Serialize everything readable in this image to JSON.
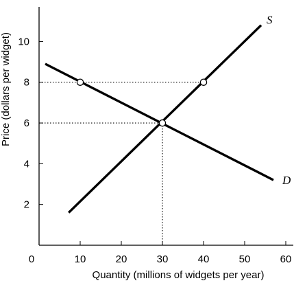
{
  "chart_data": {
    "type": "line",
    "title": "",
    "xlabel": "Quantity (millions of widgets per year)",
    "ylabel": "Price (dollars per widget)",
    "xlim": [
      0,
      62
    ],
    "ylim": [
      0,
      11.7
    ],
    "x_ticks": [
      0,
      10,
      20,
      30,
      40,
      50,
      60
    ],
    "y_ticks": [
      2,
      4,
      6,
      8,
      10
    ],
    "x_tick_labels": [
      "0",
      "10",
      "20",
      "30",
      "40",
      "50",
      "60"
    ],
    "y_tick_labels": [
      "2",
      "4",
      "6",
      "8",
      "10"
    ],
    "grid": false,
    "legend": "none",
    "series": [
      {
        "name": "S",
        "x": [
          7.2,
          54
        ],
        "y": [
          1.6,
          10.8
        ]
      },
      {
        "name": "D",
        "x": [
          1.5,
          57
        ],
        "y": [
          8.9,
          3.2
        ]
      }
    ],
    "points": [
      {
        "x": 10,
        "y": 8
      },
      {
        "x": 30,
        "y": 6
      },
      {
        "x": 40,
        "y": 8
      }
    ],
    "guides": [
      {
        "from": [
          0,
          8
        ],
        "to": [
          40,
          8
        ]
      },
      {
        "from": [
          0,
          6
        ],
        "to": [
          30,
          6
        ]
      },
      {
        "from": [
          30,
          6
        ],
        "to": [
          30,
          0
        ]
      }
    ]
  }
}
